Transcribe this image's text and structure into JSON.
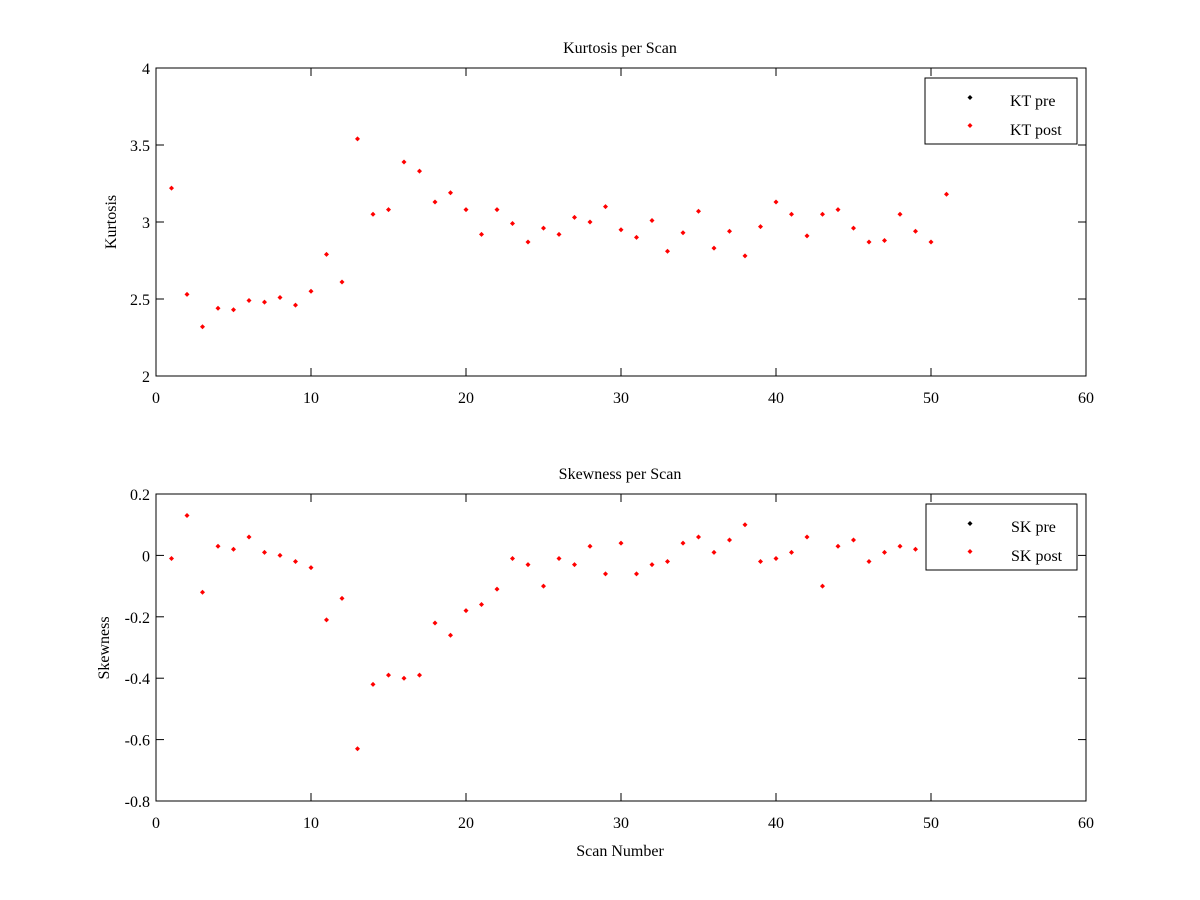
{
  "chart_data": [
    {
      "type": "scatter",
      "title": "Kurtosis per Scan",
      "xlabel": "",
      "ylabel": "Kurtosis",
      "xlim": [
        0,
        60
      ],
      "ylim": [
        2,
        4
      ],
      "xticks": [
        "0",
        "10",
        "20",
        "30",
        "40",
        "50",
        "60"
      ],
      "yticks": [
        "2",
        "2.5",
        "3",
        "3.5",
        "4"
      ],
      "grid": false,
      "legend_position": "top-right",
      "series": [
        {
          "name": "KT pre",
          "color": "#000000",
          "x": [],
          "y": []
        },
        {
          "name": "KT post",
          "color": "#ff0000",
          "x": [
            1,
            2,
            3,
            4,
            5,
            6,
            7,
            8,
            9,
            10,
            11,
            12,
            13,
            14,
            15,
            16,
            17,
            18,
            19,
            20,
            21,
            22,
            23,
            24,
            25,
            26,
            27,
            28,
            29,
            30,
            31,
            32,
            33,
            34,
            35,
            36,
            37,
            38,
            39,
            40,
            41,
            42,
            43,
            44,
            45,
            46,
            47,
            48,
            49,
            50,
            51
          ],
          "y": [
            3.22,
            2.53,
            2.32,
            2.44,
            2.43,
            2.49,
            2.48,
            2.51,
            2.46,
            2.55,
            2.79,
            2.61,
            3.54,
            3.05,
            3.08,
            3.39,
            3.33,
            3.13,
            3.19,
            3.08,
            2.92,
            3.08,
            2.99,
            2.87,
            2.96,
            2.92,
            3.03,
            3.0,
            3.1,
            2.95,
            2.9,
            3.01,
            2.81,
            2.93,
            3.07,
            2.83,
            2.94,
            2.78,
            2.97,
            3.13,
            3.05,
            2.91,
            3.05,
            3.08,
            2.96,
            2.87,
            2.88,
            3.05,
            2.94,
            2.87,
            3.18
          ]
        }
      ]
    },
    {
      "type": "scatter",
      "title": "Skewness per Scan",
      "xlabel": "Scan Number",
      "ylabel": "Skewness",
      "xlim": [
        0,
        60
      ],
      "ylim": [
        -0.8,
        0.2
      ],
      "xticks": [
        "0",
        "10",
        "20",
        "30",
        "40",
        "50",
        "60"
      ],
      "yticks": [
        "-0.8",
        "-0.6",
        "-0.4",
        "-0.2",
        "0",
        "0.2"
      ],
      "grid": false,
      "legend_position": "top-right",
      "series": [
        {
          "name": "SK pre",
          "color": "#000000",
          "x": [],
          "y": []
        },
        {
          "name": "SK post",
          "color": "#ff0000",
          "x": [
            1,
            2,
            3,
            4,
            5,
            6,
            7,
            8,
            9,
            10,
            11,
            12,
            13,
            14,
            15,
            16,
            17,
            18,
            19,
            20,
            21,
            22,
            23,
            24,
            25,
            26,
            27,
            28,
            29,
            30,
            31,
            32,
            33,
            34,
            35,
            36,
            37,
            38,
            39,
            40,
            41,
            42,
            43,
            44,
            45,
            46,
            47,
            48,
            49
          ],
          "y": [
            -0.01,
            0.13,
            -0.12,
            0.03,
            0.02,
            0.06,
            0.01,
            0.0,
            -0.02,
            -0.04,
            -0.21,
            -0.14,
            -0.63,
            -0.42,
            -0.39,
            -0.4,
            -0.39,
            -0.22,
            -0.26,
            -0.18,
            -0.16,
            -0.11,
            -0.01,
            -0.03,
            -0.1,
            -0.01,
            -0.03,
            0.03,
            -0.06,
            0.04,
            -0.06,
            -0.03,
            -0.02,
            0.04,
            0.06,
            0.01,
            0.05,
            0.1,
            -0.02,
            -0.01,
            0.01,
            0.06,
            -0.1,
            0.03,
            0.05,
            -0.02,
            0.01,
            0.03,
            0.02
          ]
        }
      ]
    }
  ]
}
